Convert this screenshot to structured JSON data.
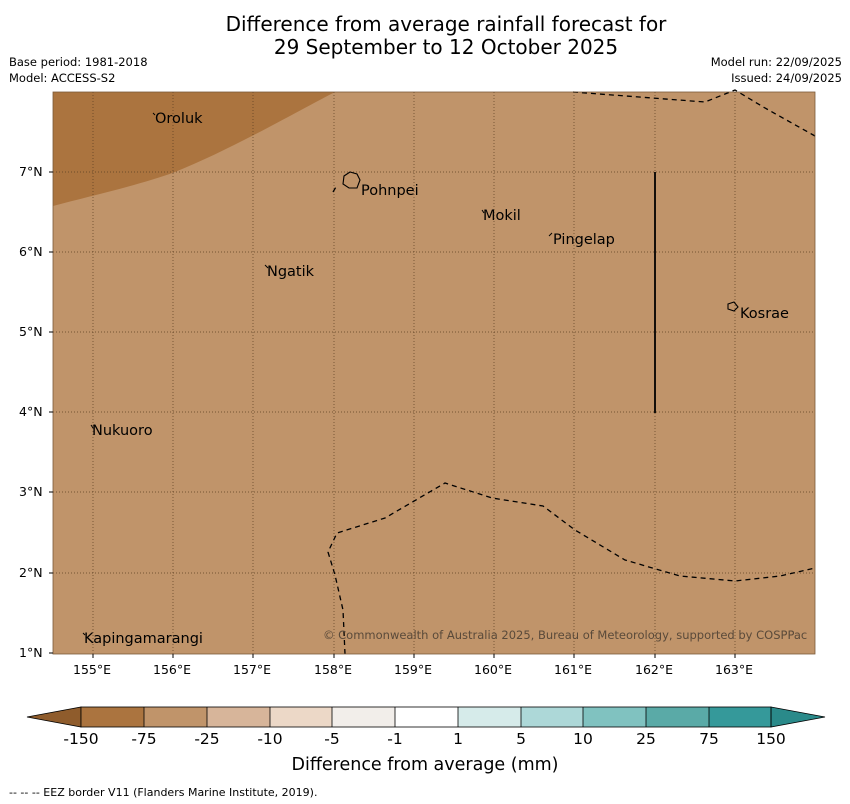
{
  "title": {
    "line1": "Difference from average rainfall forecast for",
    "line2": "29 September to 12 October 2025"
  },
  "meta_left": {
    "base_period": "Base period: 1981-2018",
    "model": "Model: ACCESS-S2"
  },
  "meta_right": {
    "model_run": "Model run: 22/09/2025",
    "issued": "Issued: 24/09/2025"
  },
  "map": {
    "lon_range": [
      154.5,
      164
    ],
    "lat_range": [
      1,
      8
    ],
    "x_tick_labels": [
      "155°E",
      "156°E",
      "157°E",
      "158°E",
      "159°E",
      "160°E",
      "161°E",
      "162°E",
      "163°E"
    ],
    "y_tick_labels": [
      "7°N",
      "6°N",
      "5°N",
      "4°N",
      "3°N",
      "2°N",
      "1°N"
    ],
    "background_category": "-75 to -25",
    "dry_region_category": "-150 to -75",
    "places": [
      {
        "name": "Oroluk"
      },
      {
        "name": "Pohnpei"
      },
      {
        "name": "Mokil"
      },
      {
        "name": "Pingelap"
      },
      {
        "name": "Ngatik"
      },
      {
        "name": "Kosrae"
      },
      {
        "name": "Nukuoro"
      },
      {
        "name": "Kapingamarangi"
      }
    ],
    "copyright": "© Commonwealth of Australia 2025, Bureau of Meteorology, supported by COSPPac"
  },
  "colorbar": {
    "labels": [
      "-150",
      "-75",
      "-25",
      "-10",
      "-5",
      "-1",
      "1",
      "5",
      "10",
      "25",
      "75",
      "150"
    ],
    "colors": [
      "#ab743f",
      "#c0946a",
      "#d7b59a",
      "#ecd8c7",
      "#f2eeea",
      "#ffffff",
      "#d6ebea",
      "#add8d8",
      "#80c2c0",
      "#5aaaa7",
      "#35999a"
    ],
    "end_low_color": "#8f5c2c",
    "end_high_color": "#2a8a8a",
    "title": "Difference from average (mm)"
  },
  "footer": "--  --  -- EEZ border V11 (Flanders Marine Institute, 2019).",
  "colors": {
    "background_fill": "#c0946a",
    "dry_fill": "#ab743f",
    "grid": "#5a3e22"
  }
}
